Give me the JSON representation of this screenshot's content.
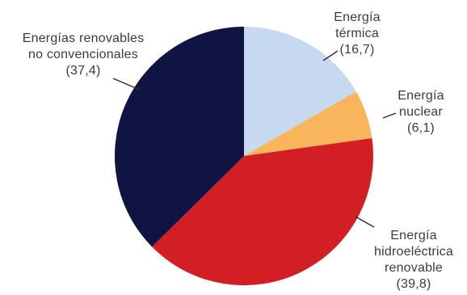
{
  "chart_data": {
    "type": "pie",
    "slices": [
      {
        "id": "termica",
        "label_lines": [
          "Energía",
          "térmica",
          "(16,7)"
        ],
        "value": 16.7,
        "color": "#c6d9f0"
      },
      {
        "id": "nuclear",
        "label_lines": [
          "Energía",
          "nuclear",
          "(6,1)"
        ],
        "value": 6.1,
        "color": "#f9b55c"
      },
      {
        "id": "hidro",
        "label_lines": [
          "Energía",
          "hidroeléctrica",
          "renovable",
          "(39,8)"
        ],
        "value": 39.8,
        "color": "#d21f26"
      },
      {
        "id": "renovables",
        "label_lines": [
          "Energías renovables",
          "no convencionales",
          "(37,4)"
        ],
        "value": 37.4,
        "color": "#0f1442"
      }
    ]
  }
}
